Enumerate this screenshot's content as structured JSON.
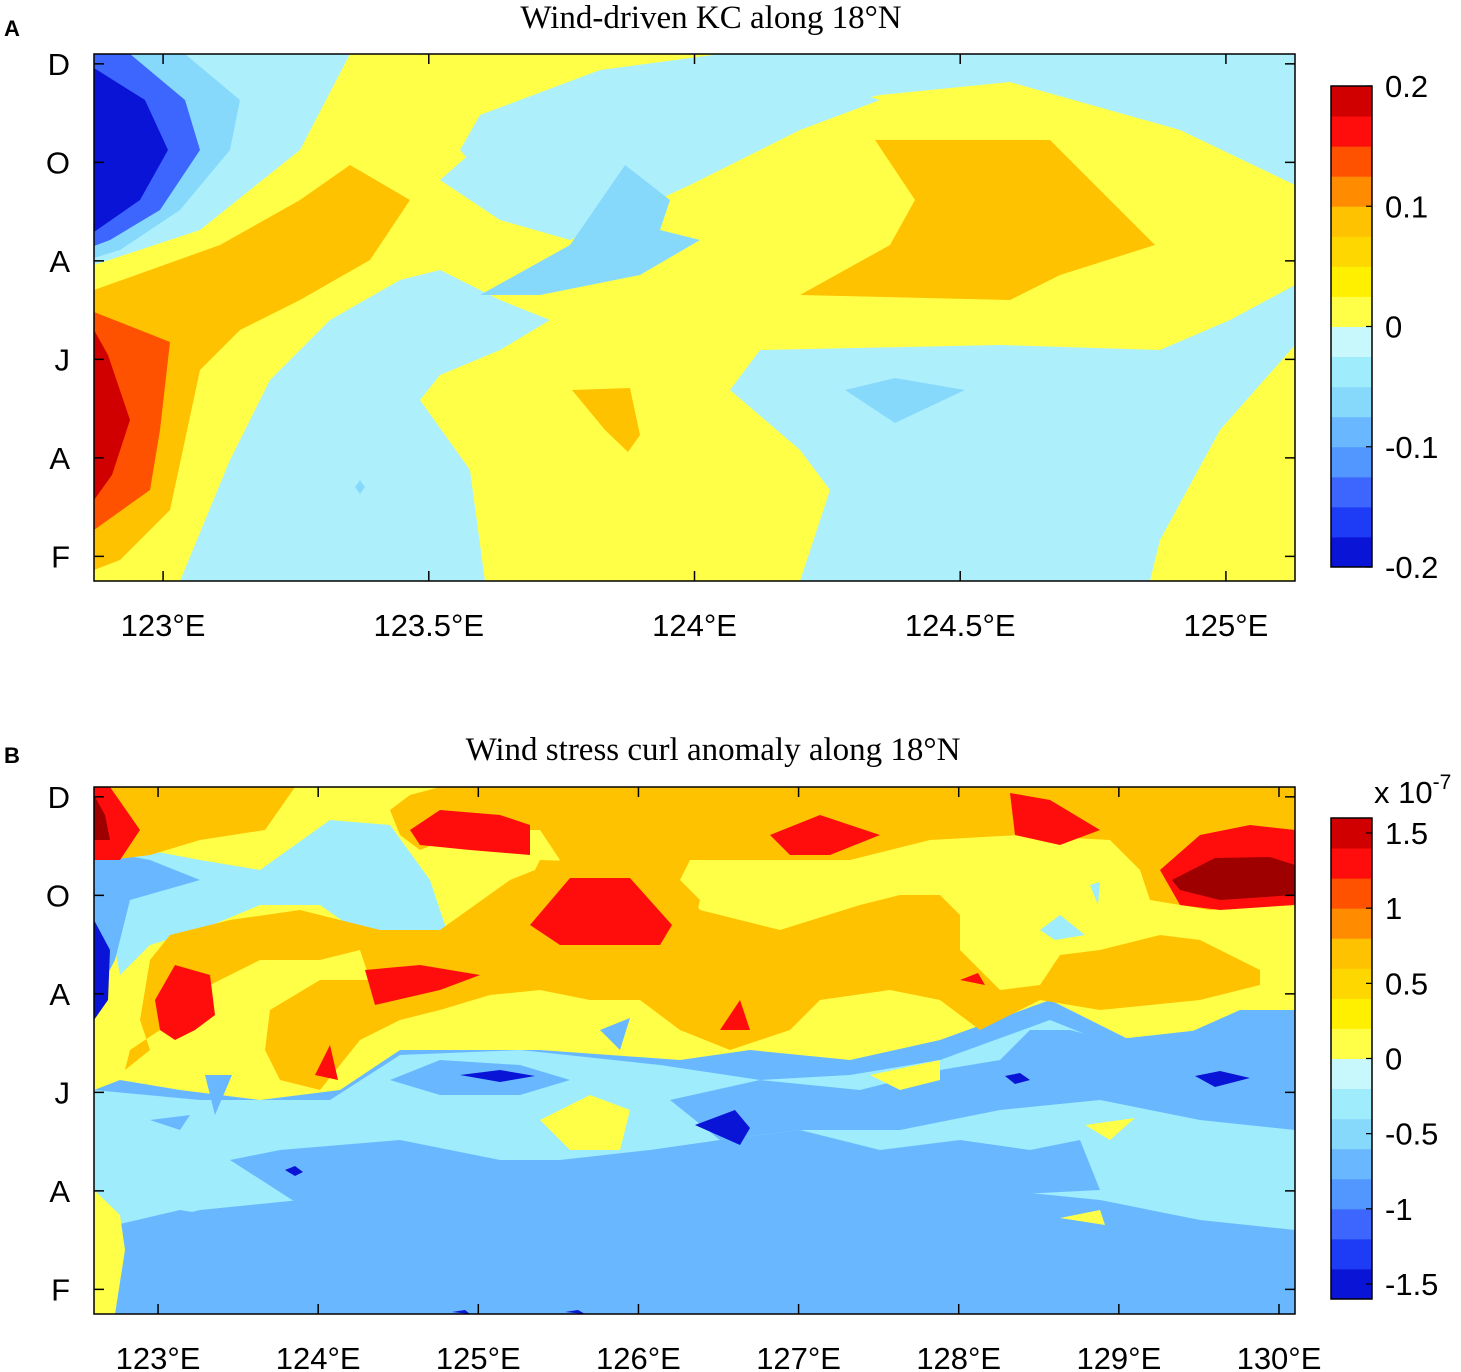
{
  "chart_data": [
    {
      "panel_label": "A",
      "type": "heatmap",
      "subtype": "filled-contour",
      "title": "Wind-driven KC along 18°N",
      "xlabel": "",
      "ylabel": "",
      "xlim": [
        122.87,
        125.13
      ],
      "x_ticks": [
        123.0,
        123.5,
        124.0,
        124.5,
        125.0
      ],
      "x_tick_labels": [
        "123°E",
        "123.5°E",
        "124°E",
        "124.5°E",
        "125°E"
      ],
      "y_ticks": [
        2,
        4,
        6,
        8,
        10,
        12
      ],
      "y_tick_labels": [
        "F",
        "A",
        "J",
        "A",
        "O",
        "D"
      ],
      "ylim": [
        1.5,
        12.2
      ],
      "colorbar": {
        "levels": [
          -0.2,
          -0.175,
          -0.15,
          -0.125,
          -0.1,
          -0.075,
          -0.05,
          -0.025,
          0,
          0.025,
          0.05,
          0.075,
          0.1,
          0.125,
          0.15,
          0.175,
          0.2
        ],
        "tick_values": [
          0.2,
          0.1,
          0,
          -0.1,
          -0.2
        ],
        "tick_labels": [
          "0.2",
          "0.1",
          "0",
          "-0.1",
          "-0.2"
        ],
        "multiplier_label": ""
      },
      "contour_bands": [
        {
          "level": "0 to 0.025",
          "color": "#ffff47"
        },
        {
          "level": "-0.025 to 0",
          "color": "#adf0fc"
        },
        {
          "level": "0.05 to 0.075",
          "color": "#ffc200"
        },
        {
          "level": "-0.05 to -0.025",
          "color": "#87d9fc"
        },
        {
          "level": "-0.1 to -0.075",
          "color": "#3d66ff"
        },
        {
          "level": "-0.2 to -0.15",
          "color": "#0a14d6"
        },
        {
          "level": "0.075 to 0.1",
          "color": "#ff8c00"
        },
        {
          "level": "0.1 to 0.125",
          "color": "#ff5200"
        },
        {
          "level": "0.15 to 0.2",
          "color": "#d10000"
        }
      ]
    },
    {
      "panel_label": "B",
      "type": "heatmap",
      "subtype": "filled-contour",
      "title": "Wind stress curl anomaly along 18°N",
      "xlabel": "",
      "ylabel": "",
      "xlim": [
        122.6,
        130.1
      ],
      "x_ticks": [
        123,
        124,
        125,
        126,
        127,
        128,
        129,
        130
      ],
      "x_tick_labels": [
        "123°E",
        "124°E",
        "125°E",
        "126°E",
        "127°E",
        "128°E",
        "129°E",
        "130°E"
      ],
      "y_ticks": [
        2,
        4,
        6,
        8,
        10,
        12
      ],
      "y_tick_labels": [
        "F",
        "A",
        "J",
        "A",
        "O",
        "D"
      ],
      "ylim": [
        1.5,
        12.2
      ],
      "colorbar": {
        "levels": [
          -1.6,
          -1.4,
          -1.2,
          -1.0,
          -0.8,
          -0.6,
          -0.4,
          -0.2,
          0,
          0.2,
          0.4,
          0.6,
          0.8,
          1.0,
          1.2,
          1.4,
          1.6
        ],
        "tick_values": [
          1.5,
          1,
          0.5,
          0,
          -0.5,
          -1,
          -1.5
        ],
        "tick_labels": [
          "1.5",
          "1",
          "0.5",
          "0",
          "-0.5",
          "-1",
          "-1.5"
        ],
        "multiplier_label": "x 10",
        "multiplier_exponent": "-7"
      },
      "contour_bands": [
        {
          "level": "0 to 0.2",
          "color": "#ffff47"
        },
        {
          "level": "0.4 to 0.6",
          "color": "#ffc200"
        },
        {
          "level": "1.0 to 1.2",
          "color": "#ff0d0d"
        },
        {
          "level": "1.4 to 1.6",
          "color": "#9e0000"
        },
        {
          "level": "-0.4 to -0.2",
          "color": "#9eecfc"
        },
        {
          "level": "-1.0 to -0.8",
          "color": "#69b8ff"
        },
        {
          "level": "-1.6 to -1.4",
          "color": "#0a14d6"
        }
      ]
    }
  ]
}
